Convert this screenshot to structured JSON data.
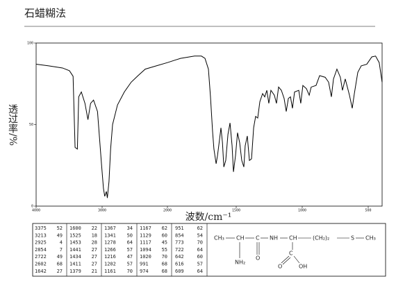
{
  "chart_data": {
    "type": "line",
    "title": "石蜡糊法",
    "x_label": "波数/cm⁻¹",
    "y_label": "透过率/%",
    "color": "#000000",
    "xlim": [
      4000,
      400
    ],
    "ylim": [
      0,
      100
    ],
    "xticks": [
      4000,
      3000,
      2000,
      1500,
      1000,
      500
    ],
    "yticks": [
      0,
      50,
      100
    ],
    "x": [
      4000,
      3810,
      3600,
      3495,
      3440,
      3410,
      3375,
      3355,
      3315,
      3260,
      3215,
      3175,
      3130,
      3070,
      3010,
      2980,
      2960,
      2935,
      2920,
      2895,
      2870,
      2840,
      2765,
      2660,
      2555,
      2450,
      2340,
      2170,
      2000,
      1905,
      1803,
      1753,
      1727,
      1702,
      1687,
      1672,
      1662,
      1646,
      1636,
      1621,
      1611,
      1600,
      1590,
      1576,
      1560,
      1545,
      1530,
      1520,
      1505,
      1490,
      1474,
      1458,
      1442,
      1432,
      1416,
      1400,
      1384,
      1368,
      1353,
      1337,
      1321,
      1300,
      1284,
      1268,
      1253,
      1237,
      1211,
      1195,
      1179,
      1158,
      1137,
      1121,
      1105,
      1089,
      1074,
      1058,
      1026,
      1011,
      995,
      968,
      947,
      932,
      895,
      868,
      826,
      800,
      779,
      763,
      737,
      711,
      695,
      674,
      642,
      621,
      605,
      579,
      553,
      511,
      474,
      447,
      421,
      400
    ],
    "values": [
      87,
      86,
      84.7,
      83,
      79.6,
      36,
      35,
      67,
      70,
      63,
      53,
      63,
      65,
      58,
      26,
      11,
      6,
      9,
      5,
      15,
      35,
      50,
      62,
      70,
      76,
      80,
      84,
      86,
      88,
      90.6,
      92,
      92,
      90.6,
      84,
      67,
      46,
      35,
      26,
      31,
      41,
      48,
      39,
      24,
      28,
      44,
      51,
      37,
      21,
      31,
      45,
      39,
      28,
      24,
      37,
      43,
      28,
      29,
      48,
      55,
      54,
      64,
      69,
      67,
      71,
      63,
      71,
      68,
      63,
      73,
      71,
      66,
      58,
      66,
      67,
      60,
      70,
      71,
      63,
      74,
      72,
      68,
      73,
      74,
      80,
      79,
      76,
      67,
      78,
      84,
      79,
      71,
      78,
      68,
      60,
      69,
      82,
      86,
      87,
      91.5,
      92,
      88,
      76
    ]
  },
  "peak_table": {
    "rows": [
      [
        3375,
        52,
        1600,
        22,
        1367,
        34,
        1167,
        62,
        951,
        62
      ],
      [
        3213,
        49,
        1525,
        18,
        1341,
        50,
        1129,
        60,
        854,
        54
      ],
      [
        2925,
        4,
        1453,
        28,
        1278,
        64,
        1117,
        45,
        773,
        70
      ],
      [
        2854,
        7,
        1441,
        27,
        1266,
        57,
        1094,
        55,
        722,
        64
      ],
      [
        2722,
        49,
        1434,
        27,
        1216,
        47,
        1020,
        70,
        642,
        60
      ],
      [
        2602,
        68,
        1411,
        27,
        1202,
        57,
        991,
        68,
        616,
        57
      ],
      [
        1642,
        27,
        1379,
        21,
        1161,
        70,
        974,
        68,
        609,
        64
      ]
    ]
  },
  "structure": {
    "main": [
      "CH₃",
      "CH",
      "C",
      "NH",
      "CH",
      "(CH₂)₂",
      "S",
      "CH₃"
    ],
    "amine": "NH₂",
    "carbonyl_o": "O",
    "acid_c": "C",
    "acid_o": "O",
    "acid_oh": "OH"
  }
}
